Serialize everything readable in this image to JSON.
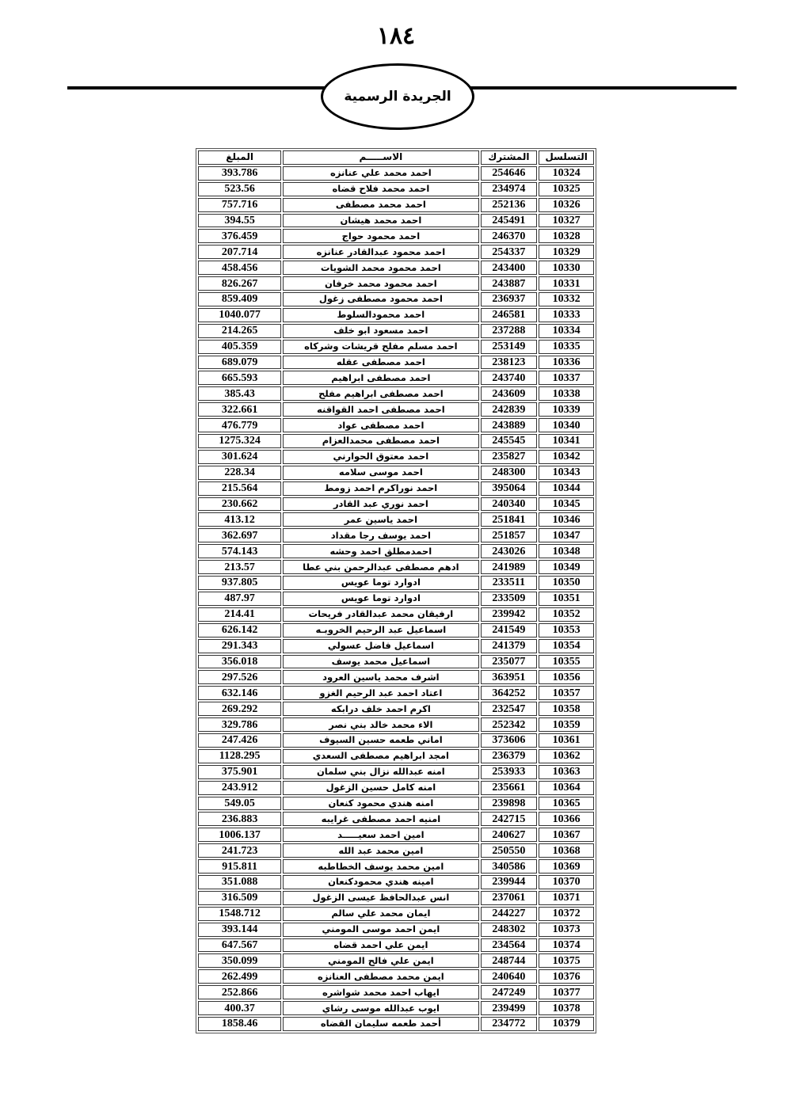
{
  "page_number": "١٨٤",
  "masthead": "الجريدة الرسمية",
  "table": {
    "headers": {
      "serial": "التسلسل",
      "subscriber": "المشترك",
      "name": "الاســـــم",
      "amount": "المبلغ"
    },
    "rows": [
      [
        "10324",
        "254646",
        "احمد محمد علي عنانزه",
        "393.786"
      ],
      [
        "10325",
        "234974",
        "احمد محمد فلاح قضاه",
        "523.56"
      ],
      [
        "10326",
        "252136",
        "احمد محمد مصطفى",
        "757.716"
      ],
      [
        "10327",
        "245491",
        "احمد محمد هيشان",
        "394.55"
      ],
      [
        "10328",
        "246370",
        "احمد محمود حواج",
        "376.459"
      ],
      [
        "10329",
        "254337",
        "احمد محمود عبدالقادر عنانزه",
        "207.714"
      ],
      [
        "10330",
        "243400",
        "احمد محمود محمد الشويات",
        "458.456"
      ],
      [
        "10331",
        "243887",
        "احمد محمود محمد خرفان",
        "826.267"
      ],
      [
        "10332",
        "236937",
        "احمد محمود مصطفى زغول",
        "859.409"
      ],
      [
        "10333",
        "246581",
        "احمد محمودالسلوط",
        "1040.077"
      ],
      [
        "10334",
        "237288",
        "احمد مسعود  ابو خلف",
        "214.265"
      ],
      [
        "10335",
        "253149",
        "احمد مسلم مفلح قريشات وشركاه",
        "405.359"
      ],
      [
        "10336",
        "238123",
        "احمد مصطفى  عقله",
        "689.079"
      ],
      [
        "10337",
        "243740",
        "احمد مصطفى ابراهيم",
        "665.593"
      ],
      [
        "10338",
        "243609",
        "احمد مصطفى ابراهيم مفلح",
        "385.43"
      ],
      [
        "10339",
        "242839",
        "احمد مصطفى احمد القواقنه",
        "322.661"
      ],
      [
        "10340",
        "243889",
        "احمد مصطفى عواد",
        "476.779"
      ],
      [
        "10341",
        "245545",
        "احمد مصطفى محمدالعزام",
        "1275.324"
      ],
      [
        "10342",
        "235827",
        "احمد معتوق الحوارني",
        "301.624"
      ],
      [
        "10343",
        "248300",
        "احمد موسى  سلامه",
        "228.34"
      ],
      [
        "10344",
        "395064",
        "احمد نوراكرم احمد زومط",
        "215.564"
      ],
      [
        "10345",
        "240340",
        "احمد نوري عبد القادر",
        "230.662"
      ],
      [
        "10346",
        "251841",
        "احمد ياسين عمر",
        "413.12"
      ],
      [
        "10347",
        "251857",
        "احمد يوسف رجا مقداد",
        "362.697"
      ],
      [
        "10348",
        "243026",
        "احمدمطلق احمد وحشه",
        "574.143"
      ],
      [
        "10349",
        "241989",
        "ادهم مصطفى عبدالرحمن بني عطا",
        "213.57"
      ],
      [
        "10350",
        "233511",
        "ادوارد  توما عويس",
        "937.805"
      ],
      [
        "10351",
        "233509",
        "ادوارد توما    عويس",
        "487.97"
      ],
      [
        "10352",
        "239942",
        "ارفيقان محمد عبدالقادر فريحات",
        "214.41"
      ],
      [
        "10353",
        "241549",
        "اسماعيل عبد الرحيم الخروبـه",
        "626.142"
      ],
      [
        "10354",
        "241379",
        "اسماعيل فاضل عسولي",
        "291.343"
      ],
      [
        "10355",
        "235077",
        "اسماعيل محمد يوسف",
        "356.018"
      ],
      [
        "10356",
        "363951",
        "اشرف محمد ياسين العرود",
        "297.526"
      ],
      [
        "10357",
        "364252",
        "اعتاد احمد عبد الرحيم الغزو",
        "632.146"
      ],
      [
        "10358",
        "232547",
        "اكرم احمد خلف درابكه",
        "269.292"
      ],
      [
        "10359",
        "252342",
        "الاء محمد خالد بني نصر",
        "329.786"
      ],
      [
        "10361",
        "373606",
        "اماني طعمه حسين السيوف",
        "247.426"
      ],
      [
        "10362",
        "236379",
        "امجد ابراهيم مصطفى السعدي",
        "1128.295"
      ],
      [
        "10363",
        "253933",
        "امنه عبدالله نزال بني سلمان",
        "375.901"
      ],
      [
        "10364",
        "235661",
        "امنه كامل حسين الزغول",
        "243.912"
      ],
      [
        "10365",
        "239898",
        "امنه هندي محمود كنعان",
        "549.05"
      ],
      [
        "10366",
        "242715",
        "امنيه احمد مصطفى غرايبه",
        "236.883"
      ],
      [
        "10367",
        "240627",
        "امين احمد سعيـــــد",
        "1006.137"
      ],
      [
        "10368",
        "250550",
        "امين محمد عبد الله",
        "241.723"
      ],
      [
        "10369",
        "340586",
        "امين محمد يوسف الخطاطبه",
        "915.811"
      ],
      [
        "10370",
        "239944",
        "امينه هندي محمودكنعان",
        "351.088"
      ],
      [
        "10371",
        "237061",
        "انس عبدالحافظ عيسى الزغول",
        "316.509"
      ],
      [
        "10372",
        "244227",
        "ايمان محمد علي سالم",
        "1548.712"
      ],
      [
        "10373",
        "248302",
        "ايمن احمد موسى المومني",
        "393.144"
      ],
      [
        "10374",
        "234564",
        "ايمن علي احمد قضاه",
        "647.567"
      ],
      [
        "10375",
        "248744",
        "ايمن علي فالح المومني",
        "350.099"
      ],
      [
        "10376",
        "240640",
        "ايمن محمد مصطفى العنانزه",
        "262.499"
      ],
      [
        "10377",
        "247249",
        "ايهاب احمد محمد شواشره",
        "252.866"
      ],
      [
        "10378",
        "239499",
        "ايوب عبدالله موسى رشاي",
        "400.37"
      ],
      [
        "10379",
        "234772",
        "أحمد طعمه سليمان القضاه",
        "1858.46"
      ]
    ]
  }
}
